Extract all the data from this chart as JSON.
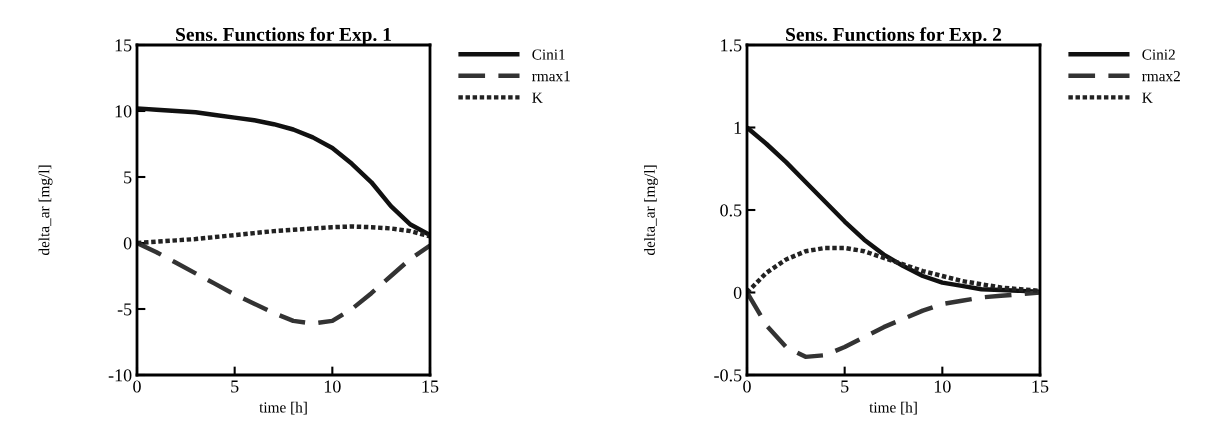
{
  "chart_data": [
    {
      "type": "line",
      "title": "Sens. Functions for Exp. 1",
      "xlabel": "time [h]",
      "ylabel": "delta_ar [mg/l]",
      "x": [
        0,
        1,
        2,
        3,
        4,
        5,
        6,
        7,
        8,
        9,
        10,
        11,
        12,
        13,
        14,
        15
      ],
      "series": [
        {
          "name": "Cini1",
          "color": "#111111",
          "line_style": "solid",
          "values": [
            10.2,
            10.1,
            10.0,
            9.9,
            9.7,
            9.5,
            9.3,
            9.0,
            8.6,
            8.0,
            7.2,
            6.0,
            4.6,
            2.8,
            1.4,
            0.6
          ]
        },
        {
          "name": "rmax1",
          "color": "#333333",
          "line_style": "dashed",
          "values": [
            0,
            -0.7,
            -1.5,
            -2.3,
            -3.1,
            -3.9,
            -4.6,
            -5.3,
            -5.9,
            -6.1,
            -5.9,
            -5.0,
            -3.8,
            -2.5,
            -1.2,
            -0.2
          ]
        },
        {
          "name": "K",
          "color": "#222222",
          "line_style": "dotted",
          "values": [
            0,
            0.1,
            0.2,
            0.3,
            0.45,
            0.6,
            0.75,
            0.9,
            1.0,
            1.1,
            1.2,
            1.25,
            1.2,
            1.1,
            0.9,
            0.5
          ]
        }
      ],
      "xlim": [
        0,
        15
      ],
      "xticks": [
        0,
        5,
        10,
        15
      ],
      "ylim": [
        -10,
        15
      ],
      "yticks": [
        -10,
        -5,
        0,
        5,
        10,
        15
      ],
      "grid": false,
      "legend": "top right",
      "marker": "none"
    },
    {
      "type": "line",
      "title": "Sens. Functions for Exp. 2",
      "xlabel": "time [h]",
      "ylabel": "delta_ar [mg/l]",
      "x": [
        0,
        1,
        2,
        3,
        4,
        5,
        6,
        7,
        8,
        9,
        10,
        11,
        12,
        13,
        14,
        15
      ],
      "series": [
        {
          "name": "Cini2",
          "color": "#111111",
          "line_style": "solid",
          "values": [
            1.0,
            0.9,
            0.79,
            0.67,
            0.55,
            0.43,
            0.32,
            0.23,
            0.16,
            0.1,
            0.06,
            0.04,
            0.02,
            0.015,
            0.01,
            0.005
          ]
        },
        {
          "name": "rmax2",
          "color": "#333333",
          "line_style": "dashed",
          "values": [
            0,
            -0.2,
            -0.33,
            -0.39,
            -0.38,
            -0.33,
            -0.27,
            -0.21,
            -0.16,
            -0.11,
            -0.07,
            -0.05,
            -0.03,
            -0.02,
            -0.01,
            0
          ]
        },
        {
          "name": "K",
          "color": "#222222",
          "line_style": "dotted",
          "values": [
            0,
            0.12,
            0.2,
            0.25,
            0.27,
            0.27,
            0.25,
            0.21,
            0.17,
            0.13,
            0.1,
            0.07,
            0.05,
            0.03,
            0.02,
            0.01
          ]
        }
      ],
      "xlim": [
        0,
        15
      ],
      "xticks": [
        0,
        5,
        10,
        15
      ],
      "ylim": [
        -0.5,
        1.5
      ],
      "yticks": [
        -0.5,
        0,
        0.5,
        1,
        1.5
      ],
      "grid": false,
      "legend": "top right",
      "marker": "none"
    }
  ]
}
